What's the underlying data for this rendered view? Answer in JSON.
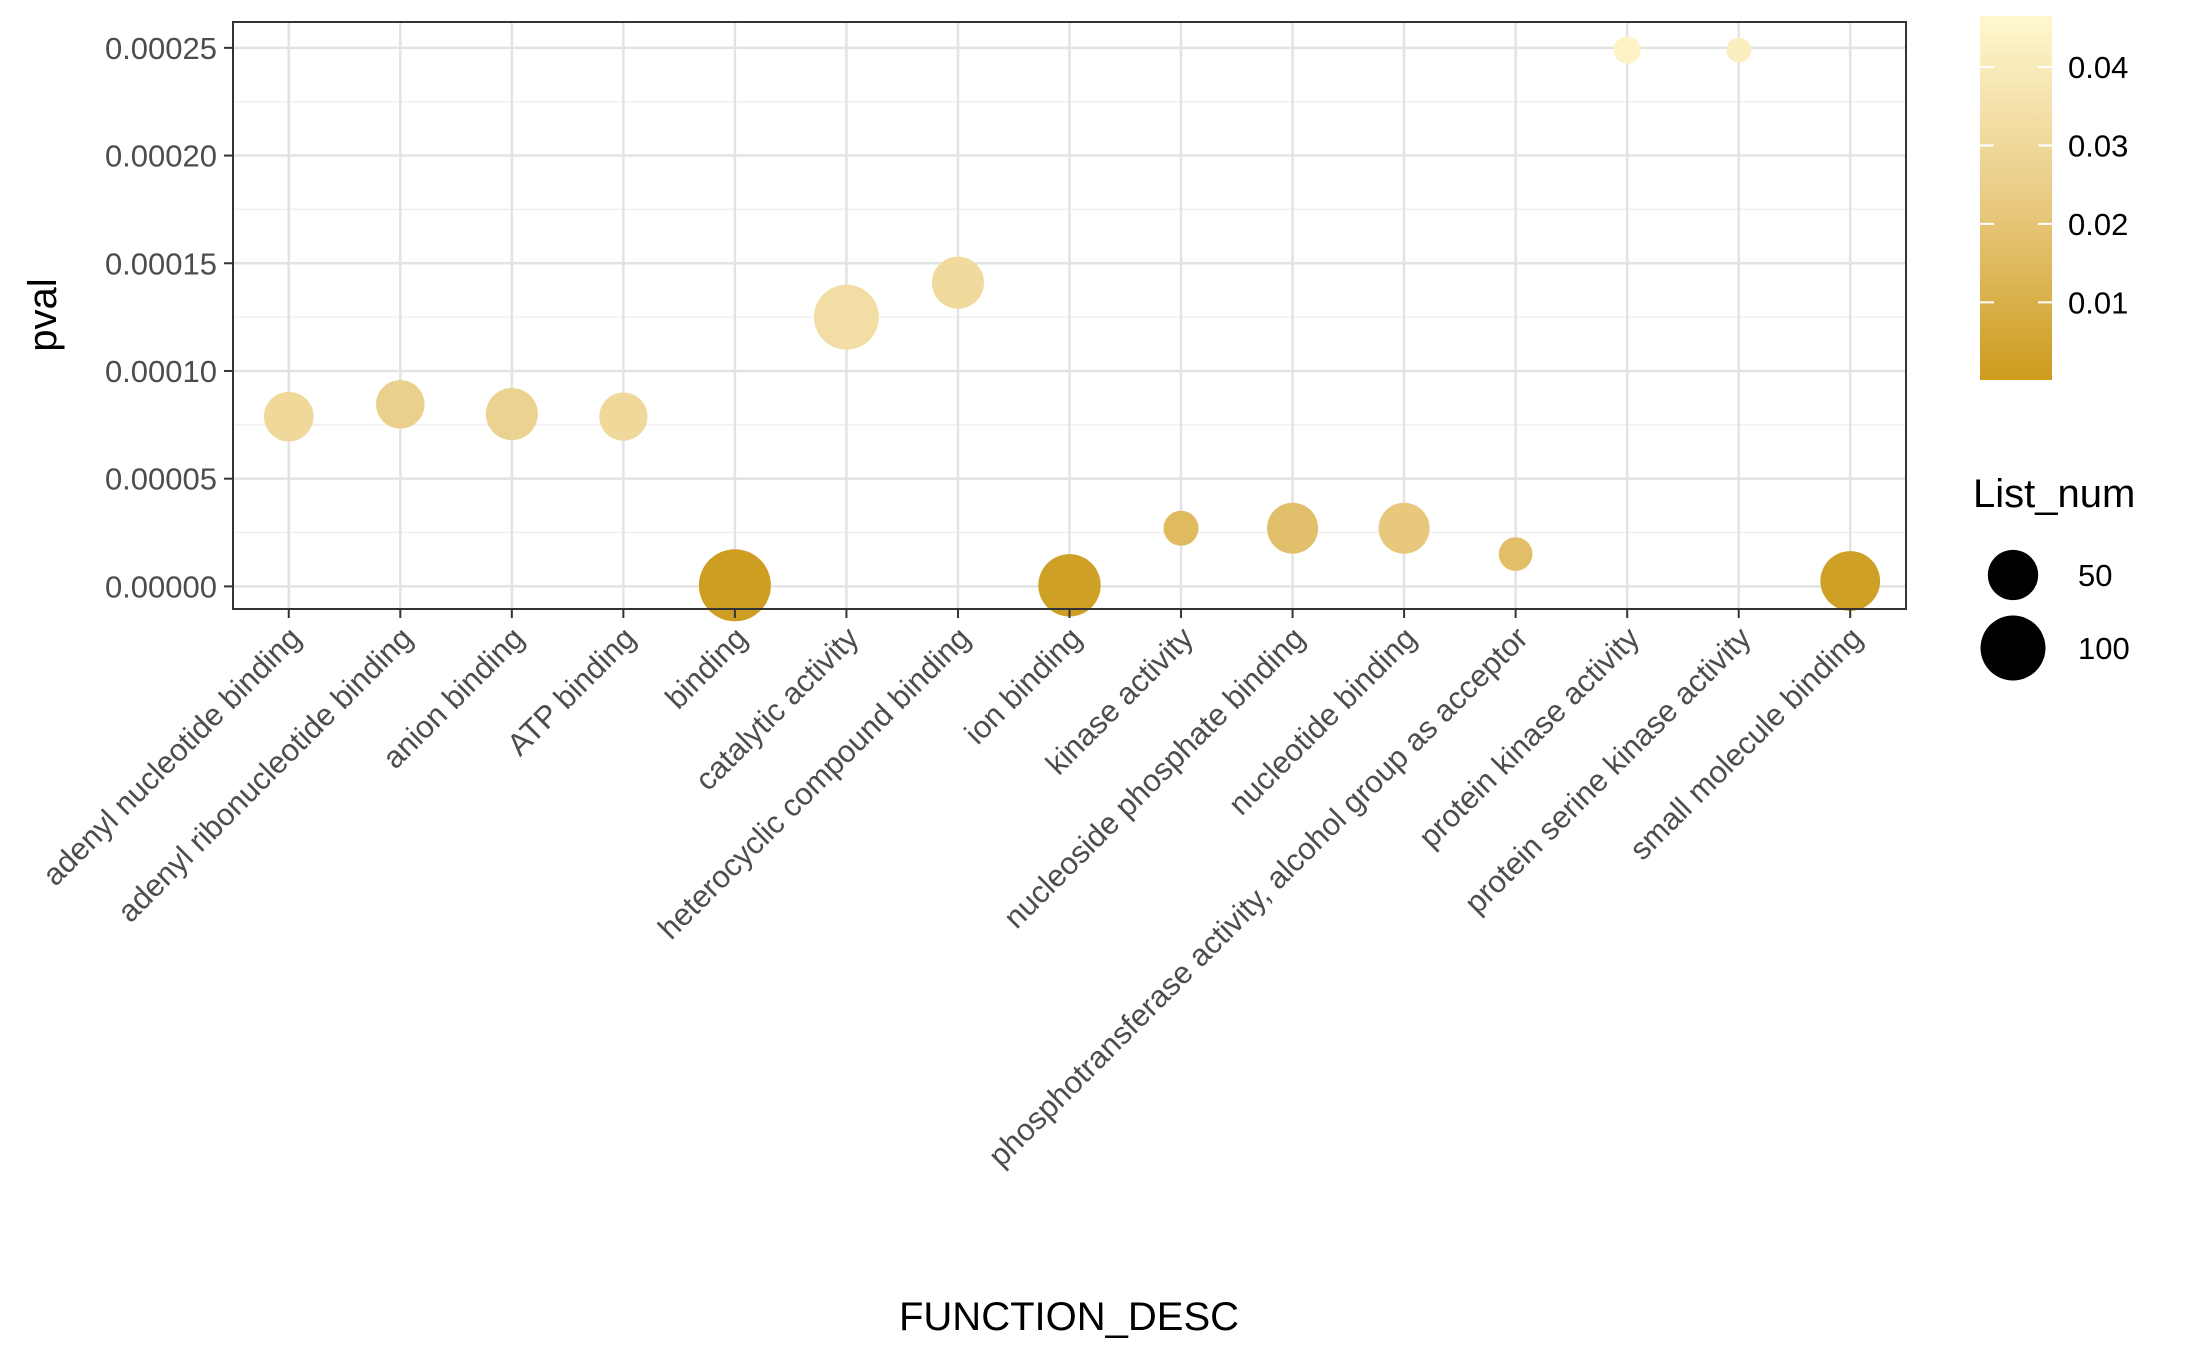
{
  "chart_data": {
    "type": "scatter",
    "xlabel": "FUNCTION_DESC",
    "ylabel": "pval",
    "categories": [
      "adenyl nucleotide binding",
      "adenyl ribonucleotide binding",
      "anion binding",
      "ATP binding",
      "binding",
      "catalytic activity",
      "heterocyclic compound binding",
      "ion binding",
      "kinase activity",
      "nucleoside phosphate binding",
      "nucleotide binding",
      "phosphotransferase activity, alcohol group as acceptor",
      "protein kinase activity",
      "protein serine kinase activity",
      "small molecule binding"
    ],
    "ylim": [
      -1.05e-05,
      0.000262
    ],
    "yticks": [
      0,
      5e-05,
      0.0001,
      0.00015,
      0.0002,
      0.00025
    ],
    "ytick_labels": [
      "0.00000",
      "0.00005",
      "0.00010",
      "0.00015",
      "0.00020",
      "0.00025"
    ],
    "grid": true,
    "points": [
      {
        "category": "adenyl nucleotide binding",
        "pval": 7.88e-05,
        "List_num": 48,
        "color_value": 0.03
      },
      {
        "category": "adenyl ribonucleotide binding",
        "pval": 8.45e-05,
        "List_num": 45,
        "color_value": 0.026
      },
      {
        "category": "anion binding",
        "pval": 8e-05,
        "List_num": 55,
        "color_value": 0.027
      },
      {
        "category": "ATP binding",
        "pval": 7.88e-05,
        "List_num": 44,
        "color_value": 0.03
      },
      {
        "category": "binding",
        "pval": 5e-07,
        "List_num": 130,
        "color_value": 0.001
      },
      {
        "category": "catalytic activity",
        "pval": 0.000125,
        "List_num": 100,
        "color_value": 0.033
      },
      {
        "category": "heterocyclic compound binding",
        "pval": 0.000141,
        "List_num": 55,
        "color_value": 0.031
      },
      {
        "category": "ion binding",
        "pval": 5e-07,
        "List_num": 90,
        "color_value": 0.002
      },
      {
        "category": "kinase activity",
        "pval": 2.7e-05,
        "List_num": 16,
        "color_value": 0.015
      },
      {
        "category": "nucleoside phosphate binding",
        "pval": 2.7e-05,
        "List_num": 52,
        "color_value": 0.018
      },
      {
        "category": "nucleotide binding",
        "pval": 2.7e-05,
        "List_num": 52,
        "color_value": 0.022
      },
      {
        "category": "phosphotransferase activity, alcohol group as acceptor",
        "pval": 1.5e-05,
        "List_num": 14,
        "color_value": 0.017
      },
      {
        "category": "protein kinase activity",
        "pval": 0.000249,
        "List_num": 6,
        "color_value": 0.044
      },
      {
        "category": "protein serine kinase activity",
        "pval": 0.000249,
        "List_num": 4,
        "color_value": 0.042
      },
      {
        "category": "small molecule binding",
        "pval": 2.5e-06,
        "List_num": 80,
        "color_value": 0.002
      }
    ],
    "color_legend": {
      "title": "",
      "range": [
        0.0001,
        0.0465
      ],
      "ticks": [
        0.01,
        0.02,
        0.03,
        0.04
      ],
      "tick_labels": [
        "0.01",
        "0.02",
        "0.03",
        "0.04"
      ],
      "low_color": "#cd9c1e",
      "mid_color": "#ebcf8c",
      "high_color": "#fff8cf"
    },
    "size_legend": {
      "title": "List_num",
      "entries": [
        {
          "label": "50",
          "value": 50
        },
        {
          "label": "100",
          "value": 100
        }
      ]
    }
  }
}
